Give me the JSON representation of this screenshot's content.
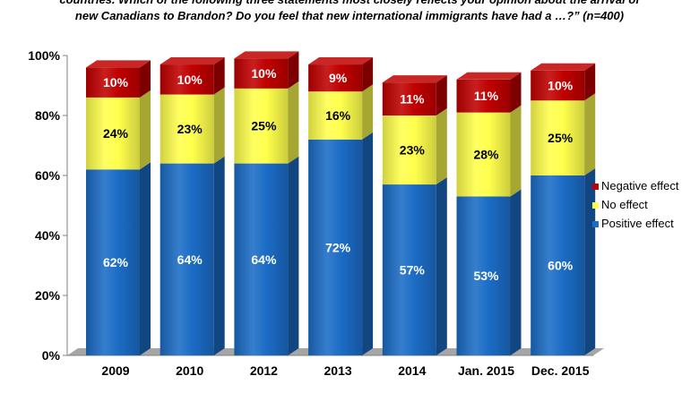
{
  "chart_data": {
    "type": "bar",
    "stacked": true,
    "subtitle_lines": [
      "countries. Which of the following three statements most closely reflects your opinion about the arrival of",
      "new Canadians to Brandon? Do you feel that new international immigrants have had a …?” (n=400)"
    ],
    "categories": [
      "2009",
      "2010",
      "2012",
      "2013",
      "2014",
      "Jan. 2015",
      "Dec. 2015"
    ],
    "series": [
      {
        "name": "Positive effect",
        "values": [
          62,
          64,
          64,
          72,
          57,
          53,
          60
        ],
        "labels": [
          "62%",
          "64%",
          "64%",
          "72%",
          "57%",
          "53%",
          "60%"
        ],
        "color": "#1b6cc6",
        "label_color": "#ffffff"
      },
      {
        "name": "No effect",
        "values": [
          24,
          23,
          25,
          16,
          23,
          28,
          25
        ],
        "labels": [
          "24%",
          "23%",
          "25%",
          "16%",
          "23%",
          "28%",
          "25%"
        ],
        "color": "#ffff4d",
        "label_color": "#000000"
      },
      {
        "name": "Negative effect",
        "values": [
          10,
          10,
          10,
          9,
          11,
          11,
          10
        ],
        "labels": [
          "10%",
          "10%",
          "10%",
          "9%",
          "11%",
          "11%",
          "10%"
        ],
        "color": "#c00000",
        "label_color": "#ffffff"
      }
    ],
    "y_ticks": [
      "0%",
      "20%",
      "40%",
      "60%",
      "80%",
      "100%"
    ],
    "y_tick_values": [
      0,
      20,
      40,
      60,
      80,
      100
    ],
    "ylim": [
      0,
      100
    ],
    "grid": false,
    "legend": {
      "position": "right",
      "order": [
        "Negative effect",
        "No effect",
        "Positive effect"
      ]
    },
    "floor_color": "#a6a6a6"
  }
}
